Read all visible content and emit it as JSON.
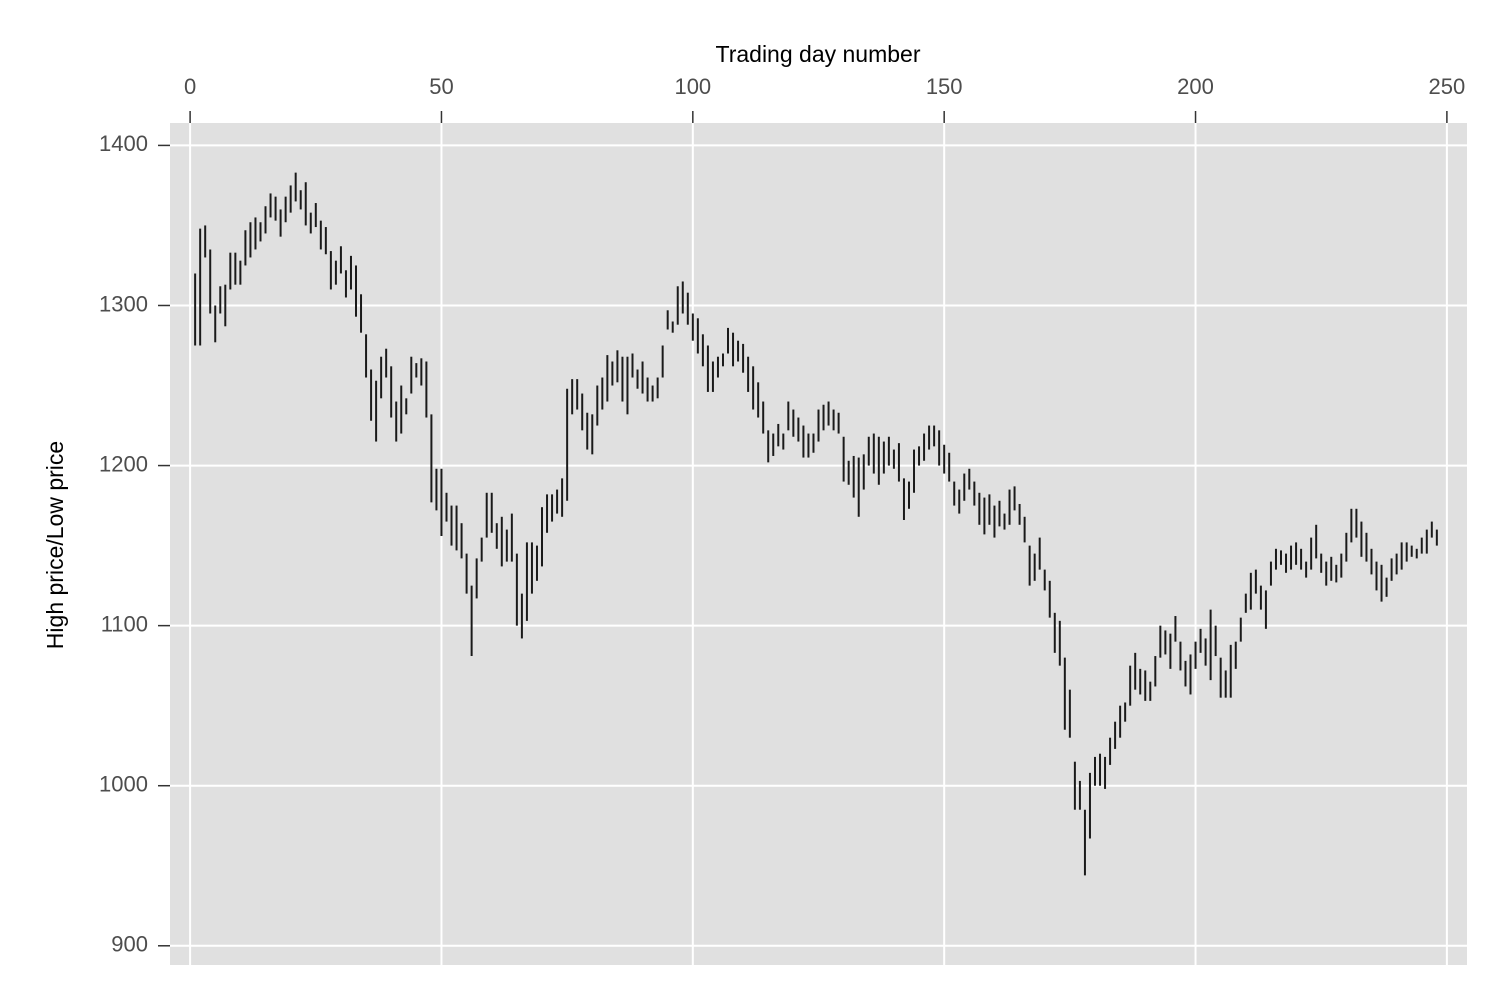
{
  "chart_data": {
    "type": "rangebar",
    "xlabel": "Trading day number",
    "ylabel": "High price/Low price",
    "x": [
      1,
      2,
      3,
      4,
      5,
      6,
      7,
      8,
      9,
      10,
      11,
      12,
      13,
      14,
      15,
      16,
      17,
      18,
      19,
      20,
      21,
      22,
      23,
      24,
      25,
      26,
      27,
      28,
      29,
      30,
      31,
      32,
      33,
      34,
      35,
      36,
      37,
      38,
      39,
      40,
      41,
      42,
      43,
      44,
      45,
      46,
      47,
      48,
      49,
      50,
      51,
      52,
      53,
      54,
      55,
      56,
      57,
      58,
      59,
      60,
      61,
      62,
      63,
      64,
      65,
      66,
      67,
      68,
      69,
      70,
      71,
      72,
      73,
      74,
      75,
      76,
      77,
      78,
      79,
      80,
      81,
      82,
      83,
      84,
      85,
      86,
      87,
      88,
      89,
      90,
      91,
      92,
      93,
      94,
      95,
      96,
      97,
      98,
      99,
      100,
      101,
      102,
      103,
      104,
      105,
      106,
      107,
      108,
      109,
      110,
      111,
      112,
      113,
      114,
      115,
      116,
      117,
      118,
      119,
      120,
      121,
      122,
      123,
      124,
      125,
      126,
      127,
      128,
      129,
      130,
      131,
      132,
      133,
      134,
      135,
      136,
      137,
      138,
      139,
      140,
      141,
      142,
      143,
      144,
      145,
      146,
      147,
      148,
      149,
      150,
      151,
      152,
      153,
      154,
      155,
      156,
      157,
      158,
      159,
      160,
      161,
      162,
      163,
      164,
      165,
      166,
      167,
      168,
      169,
      170,
      171,
      172,
      173,
      174,
      175,
      176,
      177,
      178,
      179,
      180,
      181,
      182,
      183,
      184,
      185,
      186,
      187,
      188,
      189,
      190,
      191,
      192,
      193,
      194,
      195,
      196,
      197,
      198,
      199,
      200,
      201,
      202,
      203,
      204,
      205,
      206,
      207,
      208,
      209,
      210,
      211,
      212,
      213,
      214,
      215,
      216,
      217,
      218,
      219,
      220,
      221,
      222,
      223,
      224,
      225,
      226,
      227,
      228,
      229,
      230,
      231,
      232,
      233,
      234,
      235,
      236,
      237,
      238,
      239,
      240,
      241,
      242,
      243,
      244,
      245,
      246,
      247,
      248
    ],
    "high": [
      1320,
      1348,
      1350,
      1335,
      1300,
      1312,
      1313,
      1333,
      1333,
      1328,
      1347,
      1352,
      1355,
      1352,
      1362,
      1370,
      1368,
      1360,
      1368,
      1375,
      1383,
      1372,
      1377,
      1358,
      1364,
      1353,
      1349,
      1334,
      1328,
      1337,
      1322,
      1331,
      1325,
      1307,
      1282,
      1260,
      1253,
      1268,
      1273,
      1262,
      1240,
      1250,
      1242,
      1268,
      1264,
      1267,
      1265,
      1232,
      1198,
      1198,
      1183,
      1175,
      1175,
      1164,
      1145,
      1125,
      1142,
      1155,
      1183,
      1183,
      1164,
      1168,
      1160,
      1170,
      1145,
      1120,
      1152,
      1152,
      1150,
      1174,
      1182,
      1182,
      1185,
      1192,
      1248,
      1254,
      1254,
      1245,
      1233,
      1232,
      1250,
      1255,
      1269,
      1265,
      1272,
      1268,
      1268,
      1270,
      1260,
      1265,
      1255,
      1250,
      1255,
      1275,
      1297,
      1290,
      1312,
      1315,
      1308,
      1295,
      1292,
      1282,
      1275,
      1265,
      1268,
      1270,
      1286,
      1283,
      1278,
      1276,
      1268,
      1262,
      1252,
      1240,
      1222,
      1220,
      1226,
      1220,
      1240,
      1235,
      1230,
      1225,
      1220,
      1220,
      1235,
      1238,
      1240,
      1235,
      1233,
      1218,
      1203,
      1206,
      1205,
      1207,
      1218,
      1220,
      1218,
      1215,
      1218,
      1210,
      1214,
      1192,
      1190,
      1210,
      1212,
      1220,
      1225,
      1225,
      1222,
      1213,
      1208,
      1190,
      1185,
      1195,
      1198,
      1190,
      1183,
      1180,
      1182,
      1175,
      1178,
      1170,
      1185,
      1187,
      1176,
      1168,
      1150,
      1145,
      1155,
      1135,
      1128,
      1108,
      1103,
      1080,
      1060,
      1015,
      1003,
      985,
      1008,
      1018,
      1020,
      1018,
      1030,
      1040,
      1050,
      1052,
      1075,
      1083,
      1073,
      1072,
      1065,
      1081,
      1100,
      1097,
      1095,
      1106,
      1090,
      1078,
      1082,
      1090,
      1098,
      1092,
      1110,
      1100,
      1080,
      1072,
      1088,
      1090,
      1105,
      1120,
      1133,
      1135,
      1125,
      1122,
      1140,
      1148,
      1147,
      1145,
      1150,
      1152,
      1148,
      1140,
      1155,
      1163,
      1145,
      1140,
      1143,
      1138,
      1145,
      1158,
      1173,
      1173,
      1165,
      1158,
      1148,
      1140,
      1138,
      1130,
      1142,
      1145,
      1152,
      1152,
      1150,
      1148,
      1155,
      1160,
      1165,
      1160
    ],
    "low": [
      1275,
      1275,
      1330,
      1295,
      1277,
      1295,
      1287,
      1310,
      1313,
      1313,
      1325,
      1330,
      1335,
      1340,
      1345,
      1355,
      1353,
      1343,
      1352,
      1358,
      1365,
      1360,
      1350,
      1345,
      1349,
      1335,
      1332,
      1310,
      1313,
      1320,
      1305,
      1310,
      1293,
      1283,
      1255,
      1228,
      1215,
      1242,
      1255,
      1230,
      1215,
      1220,
      1232,
      1245,
      1255,
      1250,
      1230,
      1177,
      1172,
      1156,
      1165,
      1150,
      1147,
      1142,
      1120,
      1081,
      1117,
      1140,
      1155,
      1158,
      1148,
      1137,
      1140,
      1140,
      1100,
      1092,
      1103,
      1120,
      1128,
      1137,
      1158,
      1165,
      1170,
      1168,
      1178,
      1232,
      1235,
      1222,
      1210,
      1207,
      1225,
      1235,
      1240,
      1250,
      1252,
      1240,
      1232,
      1255,
      1248,
      1245,
      1240,
      1240,
      1242,
      1255,
      1285,
      1283,
      1288,
      1295,
      1288,
      1278,
      1270,
      1262,
      1246,
      1246,
      1255,
      1262,
      1270,
      1262,
      1265,
      1258,
      1246,
      1235,
      1230,
      1220,
      1202,
      1206,
      1212,
      1210,
      1222,
      1218,
      1215,
      1205,
      1205,
      1208,
      1215,
      1222,
      1225,
      1222,
      1220,
      1190,
      1188,
      1180,
      1168,
      1185,
      1200,
      1195,
      1188,
      1195,
      1200,
      1198,
      1190,
      1166,
      1173,
      1183,
      1200,
      1203,
      1210,
      1212,
      1200,
      1195,
      1190,
      1175,
      1170,
      1178,
      1185,
      1175,
      1163,
      1157,
      1163,
      1155,
      1162,
      1160,
      1163,
      1172,
      1163,
      1152,
      1125,
      1128,
      1135,
      1122,
      1105,
      1083,
      1075,
      1035,
      1030,
      985,
      985,
      944,
      967,
      1000,
      1000,
      998,
      1013,
      1023,
      1030,
      1040,
      1050,
      1060,
      1057,
      1053,
      1053,
      1062,
      1080,
      1082,
      1073,
      1090,
      1072,
      1062,
      1057,
      1073,
      1083,
      1075,
      1066,
      1081,
      1055,
      1055,
      1055,
      1073,
      1090,
      1108,
      1110,
      1120,
      1110,
      1098,
      1125,
      1135,
      1138,
      1133,
      1135,
      1138,
      1135,
      1130,
      1135,
      1142,
      1133,
      1125,
      1128,
      1127,
      1130,
      1140,
      1152,
      1155,
      1143,
      1140,
      1132,
      1122,
      1115,
      1118,
      1128,
      1132,
      1135,
      1140,
      1143,
      1142,
      1145,
      1145,
      1155,
      1150
    ],
    "color": "#1a1a1a",
    "xlim": [
      -4,
      254
    ],
    "ylim": [
      888,
      1414
    ],
    "xticks": [
      0,
      50,
      100,
      150,
      200,
      250
    ],
    "yticks": [
      900,
      1000,
      1100,
      1200,
      1300,
      1400
    ],
    "grid": true,
    "x_axis_position": "top"
  }
}
